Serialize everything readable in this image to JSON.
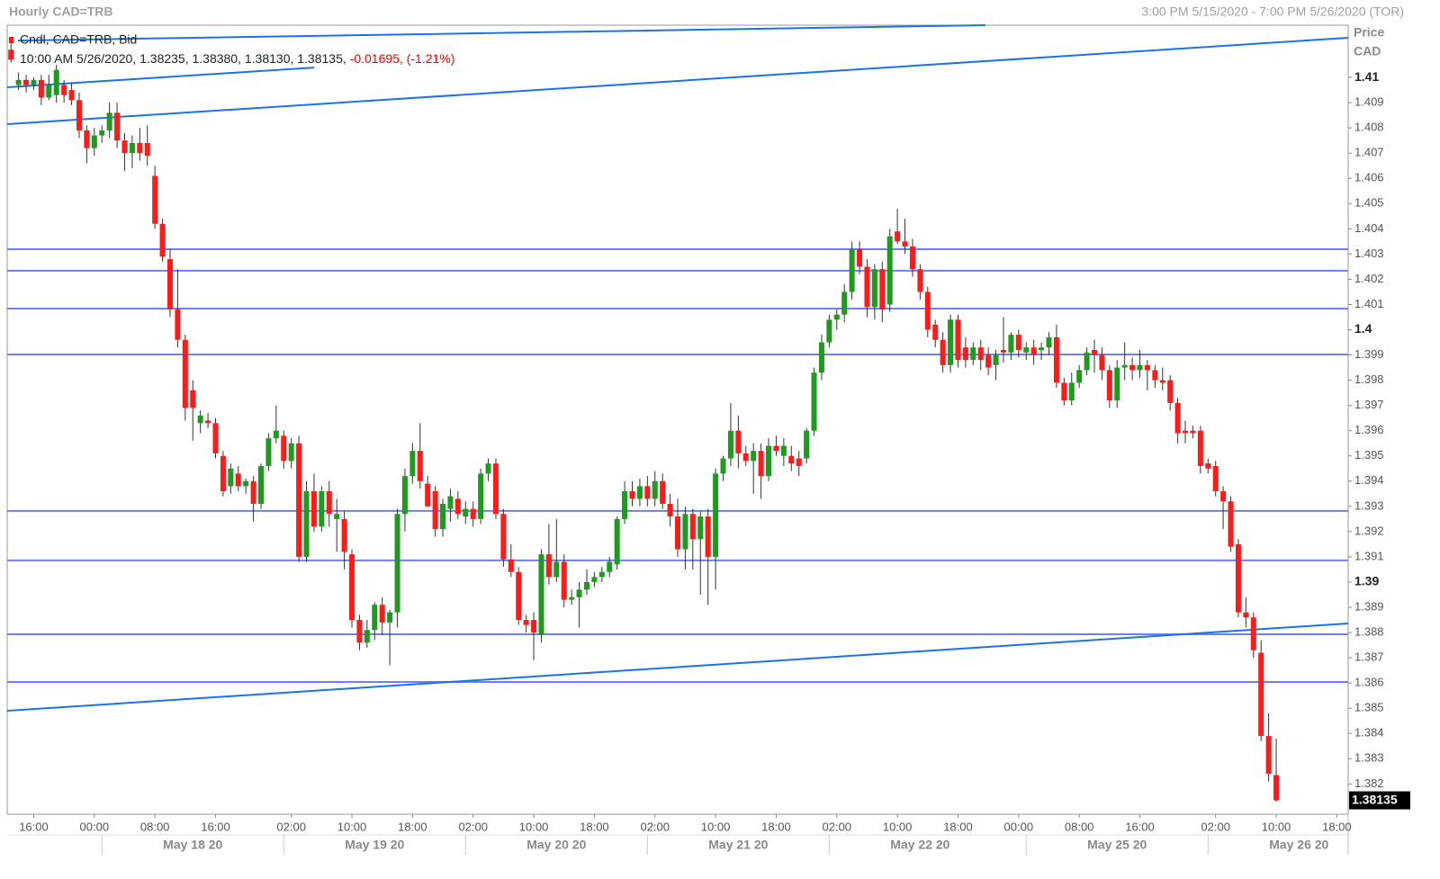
{
  "chart_data": {
    "type": "candlestick",
    "title": "Hourly CAD=TRB",
    "subtitle": "3:00 PM 5/15/2020 - 7:00 PM 5/26/2020 (TOR)",
    "legend_title": "Cndl, CAD=TRB, Bid",
    "info": "10:00 AM 5/26/2020, 1.38235, 1.38380, 1.38130, 1.38135,",
    "change": "-0.01695, (-1.21%)",
    "y_label": [
      "Price",
      "CAD"
    ],
    "up_color": "#1e9a1e",
    "down_color": "#ff1a1a",
    "hline_color": "#6e7ff2",
    "trend_color": "#1a73e8",
    "change_color": "#ff0000",
    "last_price": 1.38135,
    "xlim": [
      -0.5,
      176.5
    ],
    "ylim": [
      1.3808,
      1.41207
    ],
    "yticks": [
      1.382,
      1.383,
      1.384,
      1.385,
      1.386,
      1.387,
      1.388,
      1.389,
      1.39,
      1.391,
      1.392,
      1.393,
      1.394,
      1.395,
      1.396,
      1.397,
      1.398,
      1.399,
      1.4,
      1.401,
      1.402,
      1.403,
      1.404,
      1.405,
      1.406,
      1.407,
      1.408,
      1.409,
      1.41
    ],
    "xticks": [
      {
        "value": 3,
        "label": "16:00"
      },
      {
        "value": 11,
        "label": "00:00"
      },
      {
        "value": 19,
        "label": "08:00"
      },
      {
        "value": 27,
        "label": "16:00"
      },
      {
        "value": 37,
        "label": "02:00"
      },
      {
        "value": 45,
        "label": "10:00"
      },
      {
        "value": 53,
        "label": "18:00"
      },
      {
        "value": 61,
        "label": "02:00"
      },
      {
        "value": 69,
        "label": "10:00"
      },
      {
        "value": 77,
        "label": "18:00"
      },
      {
        "value": 85,
        "label": "02:00"
      },
      {
        "value": 93,
        "label": "10:00"
      },
      {
        "value": 101,
        "label": "18:00"
      },
      {
        "value": 109,
        "label": "02:00"
      },
      {
        "value": 117,
        "label": "10:00"
      },
      {
        "value": 125,
        "label": "18:00"
      },
      {
        "value": 133,
        "label": "00:00"
      },
      {
        "value": 141,
        "label": "08:00"
      },
      {
        "value": 149,
        "label": "16:00"
      },
      {
        "value": 159,
        "label": "02:00"
      },
      {
        "value": 167,
        "label": "10:00"
      },
      {
        "value": 175,
        "label": "18:00"
      }
    ],
    "date_ticks": [
      {
        "value": 12,
        "label": "May 18 20"
      },
      {
        "value": 36,
        "label": "May 19 20"
      },
      {
        "value": 60,
        "label": "May 20 20"
      },
      {
        "value": 84,
        "label": "May 21 20"
      },
      {
        "value": 108,
        "label": "May 22 20"
      },
      {
        "value": 134,
        "label": "May 25 20"
      },
      {
        "value": 158,
        "label": "May 26 20"
      }
    ],
    "hlines": [
      1.40319,
      1.40234,
      1.40084,
      1.39902,
      1.39282,
      1.39086,
      1.38793,
      1.38604
    ],
    "trendlines": [
      [
        [
          -0.5,
          1.40815
        ],
        [
          176.5,
          1.41157
        ]
      ],
      [
        [
          -0.5,
          1.40961
        ],
        [
          40,
          1.41039
        ]
      ],
      [
        [
          0.9,
          1.41146
        ],
        [
          128.6,
          1.41207
        ]
      ],
      [
        [
          -0.5,
          1.3849
        ],
        [
          176.5,
          1.38836
        ]
      ]
    ],
    "candles": [
      [
        1.4111,
        1.4116,
        1.4106,
        1.4107
      ],
      [
        1.4097,
        1.4102,
        1.4095,
        1.4099
      ],
      [
        1.4099,
        1.4101,
        1.4094,
        1.4097
      ],
      [
        1.4097,
        1.41,
        1.4095,
        1.4099
      ],
      [
        1.4099,
        1.4101,
        1.4089,
        1.4092
      ],
      [
        1.4092,
        1.4101,
        1.4091,
        1.4097
      ],
      [
        1.4093,
        1.4105,
        1.409,
        1.4103
      ],
      [
        1.4097,
        1.4099,
        1.409,
        1.4093
      ],
      [
        1.4095,
        1.4098,
        1.4089,
        1.4091
      ],
      [
        1.4091,
        1.4094,
        1.4076,
        1.4079
      ],
      [
        1.4079,
        1.4081,
        1.4066,
        1.4072
      ],
      [
        1.4072,
        1.408,
        1.4069,
        1.4077
      ],
      [
        1.4077,
        1.4081,
        1.4074,
        1.4079
      ],
      [
        1.4079,
        1.409,
        1.4076,
        1.4086
      ],
      [
        1.4086,
        1.409,
        1.4072,
        1.4075
      ],
      [
        1.4075,
        1.4078,
        1.4063,
        1.407
      ],
      [
        1.407,
        1.4077,
        1.4064,
        1.4074
      ],
      [
        1.4074,
        1.408,
        1.4067,
        1.407
      ],
      [
        1.4074,
        1.4081,
        1.4065,
        1.4069
      ],
      [
        1.4061,
        1.4065,
        1.404,
        1.4042
      ],
      [
        1.4042,
        1.4044,
        1.4027,
        1.4029
      ],
      [
        1.4028,
        1.4032,
        1.4005,
        1.4008
      ],
      [
        1.4008,
        1.4024,
        1.3993,
        1.3996
      ],
      [
        1.3996,
        1.3998,
        1.3964,
        1.3969
      ],
      [
        1.3976,
        1.398,
        1.3956,
        1.3969
      ],
      [
        1.3963,
        1.3968,
        1.3959,
        1.3966
      ],
      [
        1.3964,
        1.3967,
        1.3961,
        1.3963
      ],
      [
        1.3963,
        1.3965,
        1.3949,
        1.3951
      ],
      [
        1.395,
        1.3952,
        1.3934,
        1.3936
      ],
      [
        1.3938,
        1.3947,
        1.3935,
        1.3945
      ],
      [
        1.3943,
        1.3946,
        1.3936,
        1.3938
      ],
      [
        1.3938,
        1.3941,
        1.3935,
        1.394
      ],
      [
        1.394,
        1.3942,
        1.3924,
        1.3931
      ],
      [
        1.3931,
        1.3947,
        1.3929,
        1.3946
      ],
      [
        1.3946,
        1.3959,
        1.3944,
        1.3957
      ],
      [
        1.3957,
        1.397,
        1.3955,
        1.396
      ],
      [
        1.3958,
        1.396,
        1.3945,
        1.3948
      ],
      [
        1.3948,
        1.3957,
        1.3945,
        1.3955
      ],
      [
        1.3955,
        1.3958,
        1.3908,
        1.391
      ],
      [
        1.391,
        1.394,
        1.3908,
        1.3936
      ],
      [
        1.3936,
        1.3943,
        1.392,
        1.3922
      ],
      [
        1.3922,
        1.3938,
        1.392,
        1.3936
      ],
      [
        1.3936,
        1.394,
        1.3922,
        1.3927
      ],
      [
        1.3925,
        1.3933,
        1.3912,
        1.3927
      ],
      [
        1.3925,
        1.3928,
        1.3905,
        1.3912
      ],
      [
        1.3911,
        1.3913,
        1.3882,
        1.3885
      ],
      [
        1.3885,
        1.3887,
        1.3873,
        1.3876
      ],
      [
        1.3876,
        1.3885,
        1.3874,
        1.3881
      ],
      [
        1.3881,
        1.3892,
        1.3877,
        1.3891
      ],
      [
        1.3891,
        1.3894,
        1.3879,
        1.3884
      ],
      [
        1.3884,
        1.3889,
        1.3867,
        1.3888
      ],
      [
        1.3888,
        1.3929,
        1.3882,
        1.3927
      ],
      [
        1.3927,
        1.3945,
        1.392,
        1.3942
      ],
      [
        1.3942,
        1.3955,
        1.3939,
        1.3952
      ],
      [
        1.3952,
        1.3963,
        1.3937,
        1.394
      ],
      [
        1.3939,
        1.3942,
        1.393,
        1.393
      ],
      [
        1.3936,
        1.3938,
        1.3918,
        1.3921
      ],
      [
        1.3921,
        1.3933,
        1.3918,
        1.3931
      ],
      [
        1.3929,
        1.3937,
        1.3924,
        1.3934
      ],
      [
        1.3933,
        1.3936,
        1.3925,
        1.3927
      ],
      [
        1.3926,
        1.3932,
        1.3923,
        1.3929
      ],
      [
        1.3929,
        1.3932,
        1.3922,
        1.3925
      ],
      [
        1.3925,
        1.3945,
        1.3923,
        1.3943
      ],
      [
        1.3943,
        1.3949,
        1.394,
        1.3947
      ],
      [
        1.3947,
        1.3949,
        1.3925,
        1.3927
      ],
      [
        1.3927,
        1.3929,
        1.3906,
        1.3909
      ],
      [
        1.3909,
        1.3915,
        1.3902,
        1.3904
      ],
      [
        1.3904,
        1.3906,
        1.3883,
        1.3885
      ],
      [
        1.3885,
        1.3887,
        1.388,
        1.3883
      ],
      [
        1.3885,
        1.3888,
        1.3869,
        1.388
      ],
      [
        1.3879,
        1.3913,
        1.3876,
        1.3911
      ],
      [
        1.3911,
        1.3923,
        1.3899,
        1.3902
      ],
      [
        1.3902,
        1.3925,
        1.39,
        1.3908
      ],
      [
        1.3908,
        1.3911,
        1.389,
        1.3893
      ],
      [
        1.3893,
        1.3897,
        1.3891,
        1.3894
      ],
      [
        1.3894,
        1.39,
        1.3882,
        1.3897
      ],
      [
        1.3897,
        1.3905,
        1.3895,
        1.39
      ],
      [
        1.39,
        1.3904,
        1.3898,
        1.3902
      ],
      [
        1.3902,
        1.3906,
        1.39,
        1.3904
      ],
      [
        1.3904,
        1.391,
        1.3902,
        1.3908
      ],
      [
        1.3907,
        1.3926,
        1.3905,
        1.3925
      ],
      [
        1.3925,
        1.394,
        1.3923,
        1.3936
      ],
      [
        1.3936,
        1.394,
        1.393,
        1.3933
      ],
      [
        1.3933,
        1.3941,
        1.393,
        1.3938
      ],
      [
        1.3938,
        1.3942,
        1.393,
        1.3933
      ],
      [
        1.3933,
        1.3944,
        1.393,
        1.394
      ],
      [
        1.394,
        1.3943,
        1.3929,
        1.3931
      ],
      [
        1.3931,
        1.3935,
        1.3922,
        1.3926
      ],
      [
        1.3926,
        1.3933,
        1.391,
        1.3913
      ],
      [
        1.3913,
        1.393,
        1.3905,
        1.3927
      ],
      [
        1.3927,
        1.3929,
        1.3905,
        1.3917
      ],
      [
        1.3917,
        1.3928,
        1.3895,
        1.3926
      ],
      [
        1.3926,
        1.3929,
        1.3891,
        1.391
      ],
      [
        1.391,
        1.3945,
        1.3897,
        1.3943
      ],
      [
        1.3943,
        1.395,
        1.394,
        1.3949
      ],
      [
        1.3949,
        1.3971,
        1.3946,
        1.396
      ],
      [
        1.396,
        1.3966,
        1.3945,
        1.3951
      ],
      [
        1.3951,
        1.3954,
        1.3946,
        1.3948
      ],
      [
        1.3948,
        1.3955,
        1.3935,
        1.3952
      ],
      [
        1.3952,
        1.3955,
        1.3933,
        1.3942
      ],
      [
        1.3942,
        1.3957,
        1.394,
        1.3954
      ],
      [
        1.3954,
        1.3958,
        1.395,
        1.3952
      ],
      [
        1.395,
        1.3957,
        1.3946,
        1.3954
      ],
      [
        1.395,
        1.3954,
        1.3944,
        1.3947
      ],
      [
        1.3949,
        1.3952,
        1.3942,
        1.3946
      ],
      [
        1.3949,
        1.3961,
        1.3947,
        1.396
      ],
      [
        1.396,
        1.3985,
        1.3958,
        1.3983
      ],
      [
        1.3983,
        1.3998,
        1.398,
        1.3995
      ],
      [
        1.3995,
        1.4006,
        1.3993,
        1.4004
      ],
      [
        1.4004,
        1.4008,
        1.4,
        1.4006
      ],
      [
        1.4006,
        1.4018,
        1.4003,
        1.4015
      ],
      [
        1.4015,
        1.4035,
        1.4012,
        1.4032
      ],
      [
        1.4032,
        1.4035,
        1.4022,
        1.4025
      ],
      [
        1.4025,
        1.4028,
        1.4005,
        1.4009
      ],
      [
        1.4009,
        1.4026,
        1.4004,
        1.4024
      ],
      [
        1.4024,
        1.4027,
        1.4003,
        1.4008
      ],
      [
        1.401,
        1.404,
        1.4007,
        1.4037
      ],
      [
        1.4039,
        1.4048,
        1.4034,
        1.4035
      ],
      [
        1.4035,
        1.4044,
        1.403,
        1.4033
      ],
      [
        1.4033,
        1.4036,
        1.4021,
        1.4024
      ],
      [
        1.4024,
        1.4026,
        1.4012,
        1.4015
      ],
      [
        1.4015,
        1.4017,
        1.3997,
        1.4
      ],
      [
        1.4002,
        1.4004,
        1.3993,
        1.3996
      ],
      [
        1.3996,
        1.3999,
        1.3983,
        1.3986
      ],
      [
        1.3986,
        1.4006,
        1.3983,
        1.4004
      ],
      [
        1.4004,
        1.4006,
        1.3985,
        1.3988
      ],
      [
        1.3993,
        1.3997,
        1.3985,
        1.3988
      ],
      [
        1.3988,
        1.3995,
        1.3986,
        1.3993
      ],
      [
        1.3993,
        1.3996,
        1.3984,
        1.3988
      ],
      [
        1.399,
        1.3993,
        1.3982,
        1.3985
      ],
      [
        1.3986,
        1.3992,
        1.398,
        1.399
      ],
      [
        1.3992,
        1.4005,
        1.3987,
        1.3991
      ],
      [
        1.3991,
        1.3999,
        1.3988,
        1.3998
      ],
      [
        1.3998,
        1.4,
        1.3989,
        1.3992
      ],
      [
        1.3991,
        1.3995,
        1.3988,
        1.3993
      ],
      [
        1.3993,
        1.3996,
        1.3986,
        1.399
      ],
      [
        1.3992,
        1.3995,
        1.3988,
        1.3993
      ],
      [
        1.3993,
        1.3999,
        1.399,
        1.3997
      ],
      [
        1.3997,
        1.4002,
        1.3977,
        1.3979
      ],
      [
        1.3979,
        1.3981,
        1.397,
        1.3972
      ],
      [
        1.3972,
        1.3983,
        1.397,
        1.3979
      ],
      [
        1.3979,
        1.3986,
        1.3977,
        1.3984
      ],
      [
        1.3984,
        1.3993,
        1.3982,
        1.3991
      ],
      [
        1.3992,
        1.3996,
        1.3983,
        1.399
      ],
      [
        1.399,
        1.3993,
        1.398,
        1.3984
      ],
      [
        1.3984,
        1.3986,
        1.3969,
        1.3972
      ],
      [
        1.3972,
        1.3988,
        1.3969,
        1.3985
      ],
      [
        1.3985,
        1.3995,
        1.398,
        1.3986
      ],
      [
        1.3986,
        1.3989,
        1.398,
        1.3984
      ],
      [
        1.3984,
        1.3992,
        1.3981,
        1.3986
      ],
      [
        1.3986,
        1.3988,
        1.3976,
        1.3984
      ],
      [
        1.3984,
        1.3986,
        1.3977,
        1.398
      ],
      [
        1.398,
        1.3985,
        1.3976,
        1.3979
      ],
      [
        1.398,
        1.3982,
        1.3968,
        1.3971
      ],
      [
        1.3971,
        1.3973,
        1.3955,
        1.3959
      ],
      [
        1.396,
        1.3964,
        1.3955,
        1.3959
      ],
      [
        1.396,
        1.3962,
        1.3957,
        1.3959
      ],
      [
        1.396,
        1.3962,
        1.3943,
        1.3946
      ],
      [
        1.3947,
        1.3949,
        1.3943,
        1.3945
      ],
      [
        1.3946,
        1.3948,
        1.3934,
        1.3936
      ],
      [
        1.3936,
        1.3938,
        1.3921,
        1.3932
      ],
      [
        1.3932,
        1.3934,
        1.3912,
        1.3914
      ],
      [
        1.3915,
        1.3917,
        1.3886,
        1.3888
      ],
      [
        1.3888,
        1.3894,
        1.3882,
        1.3886
      ],
      [
        1.3886,
        1.3888,
        1.387,
        1.3873
      ],
      [
        1.3872,
        1.3877,
        1.3837,
        1.3839
      ],
      [
        1.3839,
        1.3848,
        1.3821,
        1.3824
      ],
      [
        1.38235,
        1.3838,
        1.3813,
        1.38135
      ]
    ]
  }
}
